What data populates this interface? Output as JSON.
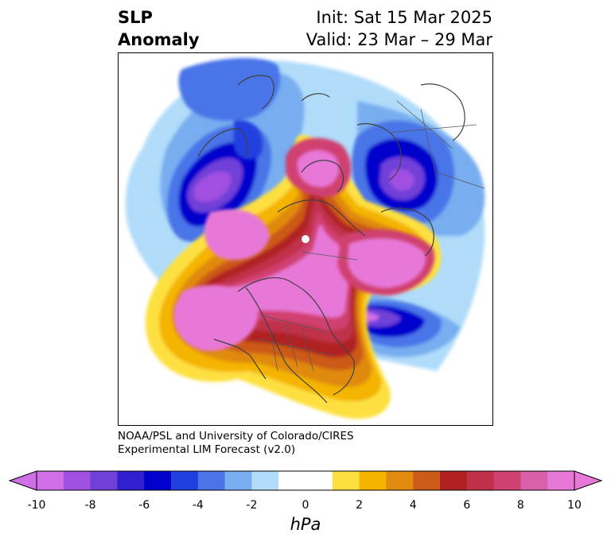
{
  "title": {
    "left_line1": "SLP",
    "left_line2": "Anomaly",
    "right_line1": "Init: Sat 15 Mar 2025",
    "right_line2": "Valid: 23 Mar – 29 Mar"
  },
  "credit": {
    "line1": "NOAA/PSL and University of Colorado/CIRES",
    "line2": "Experimental LIM Forecast (v2.0)"
  },
  "colorbar": {
    "unit": "hPa",
    "ticks": [
      "-10",
      "-8",
      "-6",
      "-4",
      "-2",
      "0",
      "2",
      "4",
      "6",
      "8",
      "10"
    ],
    "colors": [
      "#d070e8",
      "#a050e0",
      "#7040d8",
      "#3020d0",
      "#0000cc",
      "#2040dd",
      "#4a74e8",
      "#78aef0",
      "#b0dcfa",
      "#ffffff",
      "#ffffff",
      "#fde040",
      "#f4b400",
      "#e08a10",
      "#cc5a18",
      "#b02020",
      "#c03048",
      "#d04070",
      "#d860a8",
      "#e878d8"
    ],
    "range": [
      -10,
      10
    ]
  },
  "map": {
    "projection": "north-polar-stereographic",
    "features": [
      "coastlines",
      "country-borders",
      "state-borders"
    ]
  }
}
